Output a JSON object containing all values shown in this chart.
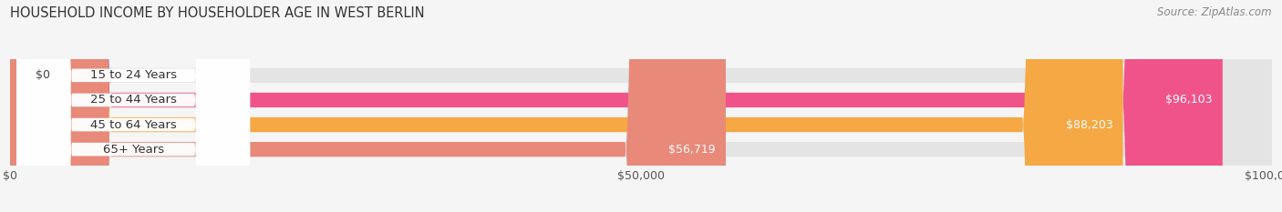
{
  "title": "HOUSEHOLD INCOME BY HOUSEHOLDER AGE IN WEST BERLIN",
  "source": "Source: ZipAtlas.com",
  "categories": [
    "15 to 24 Years",
    "25 to 44 Years",
    "45 to 64 Years",
    "65+ Years"
  ],
  "values": [
    0,
    96103,
    88203,
    56719
  ],
  "bar_colors": [
    "#a8acd8",
    "#f0538a",
    "#f5a843",
    "#e8897a"
  ],
  "bg_color": "#f5f5f5",
  "bar_bg_color": "#e4e4e4",
  "label_bg_color": "#ffffff",
  "xlim": [
    0,
    100000
  ],
  "xticks": [
    0,
    50000,
    100000
  ],
  "xticklabels": [
    "$0",
    "$50,000",
    "$100,000"
  ],
  "title_fontsize": 10.5,
  "tick_fontsize": 9,
  "source_fontsize": 8.5,
  "bar_label_fontsize": 9.5,
  "value_label_fontsize": 9
}
